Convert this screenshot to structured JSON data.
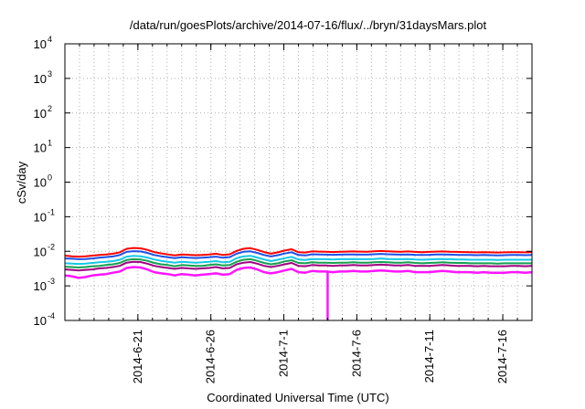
{
  "chart_data": {
    "type": "line",
    "title": "/data/run/goesPlots/archive/2014-07-16/flux/../bryn/31daysMars.plot",
    "xlabel": "Coordinated Universal Time (UTC)",
    "ylabel": "cSv/day",
    "yscale": "log",
    "ylim": [
      0.0001,
      10000
    ],
    "yticks": [
      {
        "exp": -4,
        "label": "10",
        "sup": "-4"
      },
      {
        "exp": -3,
        "label": "10",
        "sup": "-3"
      },
      {
        "exp": -2,
        "label": "10",
        "sup": "-2"
      },
      {
        "exp": -1,
        "label": "10",
        "sup": "-1"
      },
      {
        "exp": 0,
        "label": "10",
        "sup": "0"
      },
      {
        "exp": 1,
        "label": "10",
        "sup": "1"
      },
      {
        "exp": 2,
        "label": "10",
        "sup": "2"
      },
      {
        "exp": 3,
        "label": "10",
        "sup": "3"
      },
      {
        "exp": 4,
        "label": "10",
        "sup": "4"
      }
    ],
    "xlim": [
      "2014-06-16",
      "2014-07-18"
    ],
    "xticks": [
      {
        "date": "2014-06-21",
        "label": "2014-6-21"
      },
      {
        "date": "2014-06-26",
        "label": "2014-6-26"
      },
      {
        "date": "2014-07-01",
        "label": "2014-7-1"
      },
      {
        "date": "2014-07-06",
        "label": "2014-7-6"
      },
      {
        "date": "2014-07-11",
        "label": "2014-7-11"
      },
      {
        "date": "2014-07-16",
        "label": "2014-7-16"
      }
    ],
    "grid": true,
    "series": [
      {
        "color": "#ff0000",
        "values": [
          0.0075,
          0.0072,
          0.007,
          0.0072,
          0.0075,
          0.0078,
          0.0081,
          0.0085,
          0.0093,
          0.0118,
          0.0125,
          0.0122,
          0.011,
          0.0095,
          0.0087,
          0.0081,
          0.0076,
          0.0081,
          0.0079,
          0.0077,
          0.0078,
          0.0081,
          0.0085,
          0.0078,
          0.0082,
          0.0103,
          0.0118,
          0.0123,
          0.011,
          0.0095,
          0.0085,
          0.0093,
          0.0105,
          0.0115,
          0.0094,
          0.0092,
          0.01,
          0.0098,
          0.0097,
          0.0095,
          0.0097,
          0.0098,
          0.0099,
          0.0098,
          0.0097,
          0.01,
          0.0102,
          0.01,
          0.0098,
          0.0097,
          0.0099,
          0.0096,
          0.0094,
          0.0096,
          0.0098,
          0.0099,
          0.0097,
          0.0096,
          0.0095,
          0.0094,
          0.0093,
          0.0094,
          0.0093,
          0.0092,
          0.0093,
          0.0094,
          0.0094,
          0.0093,
          0.0094
        ]
      },
      {
        "color": "#1e50e6",
        "values": [
          0.0062,
          0.0061,
          0.0059,
          0.006,
          0.0062,
          0.0065,
          0.0068,
          0.0071,
          0.0078,
          0.0096,
          0.0101,
          0.0099,
          0.009,
          0.0078,
          0.0072,
          0.0067,
          0.0063,
          0.0067,
          0.0065,
          0.0064,
          0.0065,
          0.0067,
          0.007,
          0.0065,
          0.0068,
          0.0085,
          0.0097,
          0.01,
          0.009,
          0.0078,
          0.0071,
          0.0077,
          0.0086,
          0.0094,
          0.0078,
          0.0076,
          0.0082,
          0.0081,
          0.008,
          0.0079,
          0.008,
          0.0081,
          0.0081,
          0.008,
          0.008,
          0.0082,
          0.0084,
          0.0082,
          0.0081,
          0.008,
          0.0081,
          0.0079,
          0.0078,
          0.0079,
          0.0081,
          0.0081,
          0.008,
          0.0079,
          0.0078,
          0.0078,
          0.0077,
          0.0078,
          0.0077,
          0.0076,
          0.0077,
          0.0078,
          0.0078,
          0.0077,
          0.0078
        ]
      },
      {
        "color": "#14c8e6",
        "values": [
          0.0045,
          0.0044,
          0.0043,
          0.0044,
          0.0046,
          0.0048,
          0.005,
          0.0052,
          0.0057,
          0.007,
          0.0074,
          0.0072,
          0.0066,
          0.0058,
          0.0053,
          0.005,
          0.0047,
          0.005,
          0.0048,
          0.0047,
          0.0048,
          0.005,
          0.0052,
          0.0048,
          0.005,
          0.0063,
          0.0071,
          0.0074,
          0.0066,
          0.0058,
          0.0052,
          0.0057,
          0.0063,
          0.0069,
          0.0058,
          0.0056,
          0.006,
          0.0059,
          0.0059,
          0.0058,
          0.0059,
          0.0059,
          0.006,
          0.0059,
          0.0059,
          0.006,
          0.0062,
          0.006,
          0.0059,
          0.0059,
          0.006,
          0.0058,
          0.0057,
          0.0058,
          0.0059,
          0.006,
          0.0059,
          0.0058,
          0.0058,
          0.0057,
          0.0057,
          0.0057,
          0.0057,
          0.0056,
          0.0057,
          0.0057,
          0.0057,
          0.0057,
          0.0057
        ]
      },
      {
        "color": "#14a050",
        "values": [
          0.0036,
          0.0035,
          0.0034,
          0.0035,
          0.0037,
          0.0038,
          0.004,
          0.0042,
          0.0046,
          0.0056,
          0.0059,
          0.0058,
          0.0053,
          0.0046,
          0.0042,
          0.004,
          0.0037,
          0.004,
          0.0039,
          0.0038,
          0.0038,
          0.004,
          0.0042,
          0.0039,
          0.004,
          0.005,
          0.0057,
          0.0059,
          0.0053,
          0.0046,
          0.0042,
          0.0045,
          0.0051,
          0.0055,
          0.0046,
          0.0045,
          0.0048,
          0.0047,
          0.0047,
          0.0046,
          0.0047,
          0.0047,
          0.0048,
          0.0047,
          0.0047,
          0.0048,
          0.0049,
          0.0048,
          0.0047,
          0.0047,
          0.0048,
          0.0046,
          0.0045,
          0.0046,
          0.0047,
          0.0048,
          0.0047,
          0.0046,
          0.0046,
          0.0045,
          0.0045,
          0.0045,
          0.0045,
          0.0044,
          0.0045,
          0.0045,
          0.0045,
          0.0045,
          0.0045
        ]
      },
      {
        "color": "#a00080",
        "values": [
          0.003,
          0.0029,
          0.0028,
          0.0029,
          0.003,
          0.0032,
          0.0033,
          0.0035,
          0.0038,
          0.0047,
          0.005,
          0.0049,
          0.0044,
          0.0038,
          0.0035,
          0.0033,
          0.0031,
          0.0033,
          0.0032,
          0.0031,
          0.0032,
          0.0033,
          0.0035,
          0.0032,
          0.0033,
          0.0042,
          0.0047,
          0.0049,
          0.0044,
          0.0038,
          0.0035,
          0.0038,
          0.0042,
          0.0046,
          0.0038,
          0.0037,
          0.004,
          0.0039,
          0.0039,
          0.0038,
          0.0039,
          0.0039,
          0.004,
          0.0039,
          0.0039,
          0.004,
          0.0041,
          0.004,
          0.0039,
          0.0039,
          0.004,
          0.0038,
          0.0038,
          0.0038,
          0.0039,
          0.004,
          0.0039,
          0.0038,
          0.0038,
          0.0038,
          0.0037,
          0.0038,
          0.0037,
          0.0037,
          0.0037,
          0.0038,
          0.0038,
          0.0037,
          0.0038
        ]
      },
      {
        "color": "#ff14ff",
        "values": [
          0.002,
          0.0019,
          0.0017,
          0.0018,
          0.002,
          0.0021,
          0.0022,
          0.0024,
          0.0026,
          0.0033,
          0.0035,
          0.0034,
          0.003,
          0.0025,
          0.0023,
          0.0022,
          0.002,
          0.0022,
          0.0021,
          0.002,
          0.0021,
          0.0022,
          0.0023,
          0.0021,
          0.0022,
          0.0029,
          0.0033,
          0.0034,
          0.003,
          0.0025,
          0.0023,
          0.0025,
          0.0028,
          0.0031,
          0.0025,
          0.0024,
          0.0027,
          0.0026,
          0.0026,
          0.0025,
          0.0026,
          0.0026,
          0.0027,
          0.0026,
          0.0026,
          0.0027,
          0.0028,
          0.0027,
          0.0026,
          0.0026,
          0.0027,
          0.0025,
          0.0025,
          0.0025,
          0.0026,
          0.0027,
          0.0026,
          0.0025,
          0.0025,
          0.0025,
          0.0024,
          0.0025,
          0.0024,
          0.0024,
          0.0024,
          0.0025,
          0.0025,
          0.0024,
          0.0025
        ]
      }
    ],
    "series_x": {
      "start": "2014-06-16",
      "end": "2014-07-18"
    },
    "dip": {
      "date": "2014-07-04",
      "value": 0.0001
    }
  }
}
